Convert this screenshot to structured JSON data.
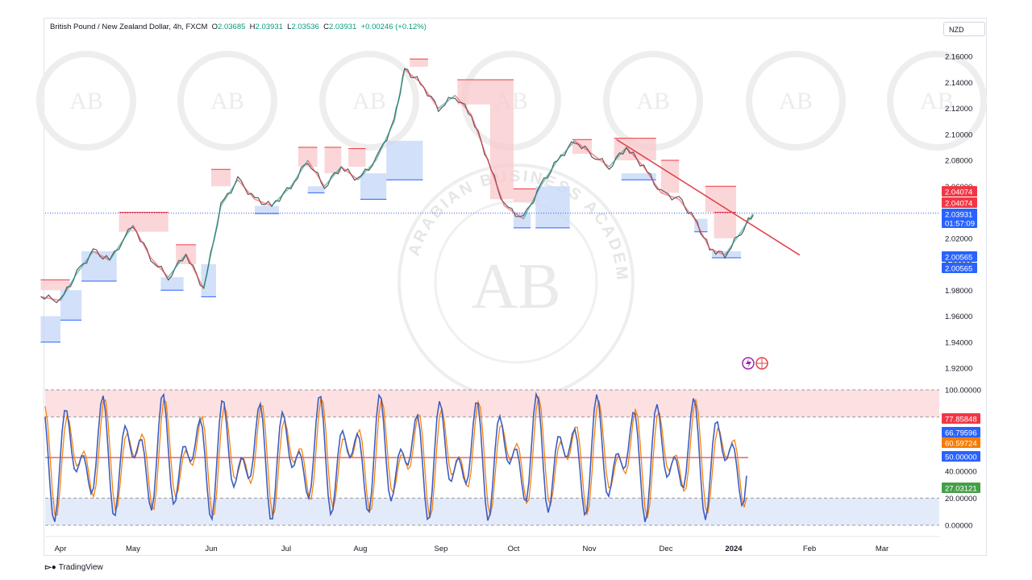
{
  "header": {
    "symbol": "British Pound / New Zealand Dollar, 4h, FXCM",
    "o_label": "O",
    "o": "2.03685",
    "h_label": "H",
    "h": "2.03931",
    "l_label": "L",
    "l": "2.03536",
    "c_label": "C",
    "c": "2.03931",
    "change": "+0.00246 (+0.12%)"
  },
  "currency_button": "NZD",
  "brand": "TradingView",
  "watermark_text": "ARABIAN BUSINESS ACADEMY",
  "watermark_mark": "AB",
  "colors": {
    "up": "#089981",
    "down": "#f23645",
    "line": "#2962ff",
    "supply": "#f8c8cc",
    "demand": "#c7d8f7",
    "trend": "#e0464d"
  },
  "chart_data": [
    {
      "type": "line",
      "title": "",
      "price_axis_ticks": [
        "2.16000",
        "2.14000",
        "2.12000",
        "2.10000",
        "2.08000",
        "2.06000",
        "2.04000",
        "2.02000",
        "2.00000",
        "1.98000",
        "1.96000",
        "1.94000",
        "1.92000"
      ],
      "ylim": [
        1.915,
        2.17
      ],
      "xlabels": [
        "Apr",
        "May",
        "Jun",
        "Jul",
        "Aug",
        "Sep",
        "Oct",
        "Nov",
        "Dec",
        "2024",
        "Feb",
        "Mar"
      ],
      "series": [
        {
          "values": [
            {
              "x": "Mar 24",
              "y": 1.975
            },
            {
              "x": "Apr 1",
              "y": 1.972
            },
            {
              "x": "Apr 8",
              "y": 1.993
            },
            {
              "x": "Apr 15",
              "y": 2.01
            },
            {
              "x": "Apr 22",
              "y": 2.003
            },
            {
              "x": "May 1",
              "y": 2.03
            },
            {
              "x": "May 8",
              "y": 2.005
            },
            {
              "x": "May 15",
              "y": 1.99
            },
            {
              "x": "May 22",
              "y": 2.008
            },
            {
              "x": "May 29",
              "y": 1.981
            },
            {
              "x": "Jun 5",
              "y": 2.045
            },
            {
              "x": "Jun 12",
              "y": 2.065
            },
            {
              "x": "Jun 19",
              "y": 2.05
            },
            {
              "x": "Jun 26",
              "y": 2.045
            },
            {
              "x": "Jul 3",
              "y": 2.06
            },
            {
              "x": "Jul 10",
              "y": 2.08
            },
            {
              "x": "Jul 17",
              "y": 2.06
            },
            {
              "x": "Jul 24",
              "y": 2.075
            },
            {
              "x": "Jul 31",
              "y": 2.065
            },
            {
              "x": "Aug 7",
              "y": 2.08
            },
            {
              "x": "Aug 14",
              "y": 2.11
            },
            {
              "x": "Aug 18",
              "y": 2.15
            },
            {
              "x": "Aug 24",
              "y": 2.14
            },
            {
              "x": "Aug 31",
              "y": 2.12
            },
            {
              "x": "Sep 7",
              "y": 2.13
            },
            {
              "x": "Sep 14",
              "y": 2.115
            },
            {
              "x": "Sep 21",
              "y": 2.08
            },
            {
              "x": "Sep 28",
              "y": 2.045
            },
            {
              "x": "Oct 5",
              "y": 2.035
            },
            {
              "x": "Oct 12",
              "y": 2.06
            },
            {
              "x": "Oct 19",
              "y": 2.08
            },
            {
              "x": "Oct 26",
              "y": 2.095
            },
            {
              "x": "Nov 2",
              "y": 2.085
            },
            {
              "x": "Nov 9",
              "y": 2.075
            },
            {
              "x": "Nov 16",
              "y": 2.09
            },
            {
              "x": "Nov 23",
              "y": 2.075
            },
            {
              "x": "Nov 30",
              "y": 2.055
            },
            {
              "x": "Dec 7",
              "y": 2.05
            },
            {
              "x": "Dec 14",
              "y": 2.035
            },
            {
              "x": "Dec 21",
              "y": 2.012
            },
            {
              "x": "Dec 28",
              "y": 2.007
            },
            {
              "x": "Jan 4",
              "y": 2.025
            },
            {
              "x": "Jan 9",
              "y": 2.039
            }
          ]
        }
      ],
      "supply_zones": [
        {
          "x0": "Mar 24",
          "x1": "Apr 5",
          "y0": 1.98,
          "y1": 1.988
        },
        {
          "x0": "Apr 26",
          "x1": "May 15",
          "y0": 2.025,
          "y1": 2.04
        },
        {
          "x0": "May 18",
          "x1": "May 26",
          "y0": 2.0,
          "y1": 2.015
        },
        {
          "x0": "Jun 1",
          "x1": "Jun 9",
          "y0": 2.06,
          "y1": 2.073
        },
        {
          "x0": "Jul 6",
          "x1": "Jul 14",
          "y0": 2.075,
          "y1": 2.09
        },
        {
          "x0": "Jul 17",
          "x1": "Jul 24",
          "y0": 2.07,
          "y1": 2.09
        },
        {
          "x0": "Jul 27",
          "x1": "Aug 3",
          "y0": 2.075,
          "y1": 2.089
        },
        {
          "x0": "Aug 20",
          "x1": "Aug 27",
          "y0": 2.152,
          "y1": 2.158
        },
        {
          "x0": "Sep 8",
          "x1": "Sep 22",
          "y0": 2.123,
          "y1": 2.142
        },
        {
          "x0": "Sep 22",
          "x1": "Oct 1",
          "y0": 2.05,
          "y1": 2.142
        },
        {
          "x0": "Oct 1",
          "x1": "Oct 11",
          "y0": 2.048,
          "y1": 2.058
        },
        {
          "x0": "Oct 25",
          "x1": "Nov 2",
          "y0": 2.085,
          "y1": 2.096
        },
        {
          "x0": "Nov 11",
          "x1": "Nov 28",
          "y0": 2.08,
          "y1": 2.097
        },
        {
          "x0": "Nov 30",
          "x1": "Dec 7",
          "y0": 2.055,
          "y1": 2.08
        },
        {
          "x0": "Dec 19",
          "x1": "Jan 2",
          "y0": 2.04,
          "y1": 2.06
        },
        {
          "x0": "Dec 23",
          "x1": "Jan 2",
          "y0": 2.02,
          "y1": 2.04
        }
      ],
      "demand_zones": [
        {
          "x0": "Mar 24",
          "x1": "Apr 1",
          "y0": 1.94,
          "y1": 1.96
        },
        {
          "x0": "Apr 1",
          "x1": "Apr 10",
          "y0": 1.957,
          "y1": 1.98
        },
        {
          "x0": "Apr 10",
          "x1": "Apr 25",
          "y0": 1.987,
          "y1": 2.01
        },
        {
          "x0": "May 12",
          "x1": "May 21",
          "y0": 1.98,
          "y1": 1.99
        },
        {
          "x0": "May 28",
          "x1": "Jun 3",
          "y0": 1.975,
          "y1": 2.0
        },
        {
          "x0": "Jun 19",
          "x1": "Jun 29",
          "y0": 2.039,
          "y1": 2.045
        },
        {
          "x0": "Jul 10",
          "x1": "Jul 17",
          "y0": 2.055,
          "y1": 2.06
        },
        {
          "x0": "Aug 1",
          "x1": "Aug 11",
          "y0": 2.05,
          "y1": 2.07
        },
        {
          "x0": "Aug 11",
          "x1": "Aug 25",
          "y0": 2.065,
          "y1": 2.095
        },
        {
          "x0": "Oct 1",
          "x1": "Oct 8",
          "y0": 2.028,
          "y1": 2.04
        },
        {
          "x0": "Oct 10",
          "x1": "Oct 24",
          "y0": 2.028,
          "y1": 2.06
        },
        {
          "x0": "Nov 14",
          "x1": "Nov 28",
          "y0": 2.065,
          "y1": 2.07
        },
        {
          "x0": "Dec 14",
          "x1": "Dec 20",
          "y0": 2.025,
          "y1": 2.035
        },
        {
          "x0": "Dec 22",
          "x1": "Jan 4",
          "y0": 2.005,
          "y1": 2.01
        }
      ],
      "trendline": [
        {
          "x": "Nov 12",
          "y": 2.096
        },
        {
          "x": "Jan 28",
          "y": 2.007
        }
      ],
      "last_price_line": 2.03931,
      "price_tags": [
        {
          "text": "2.04074",
          "value": 2.04074,
          "color": "#f23645"
        },
        {
          "text": "2.04074",
          "value": 2.04074,
          "color": "#f23645"
        },
        {
          "text": "2.03931",
          "value": 2.03931,
          "color": "#2962ff"
        },
        {
          "text": "01:57:09",
          "value": 2.03931,
          "color": "#2962ff"
        },
        {
          "text": "2.00565",
          "value": 2.00565,
          "color": "#2962ff"
        },
        {
          "text": "2.00565",
          "value": 2.00565,
          "color": "#2962ff"
        }
      ]
    },
    {
      "type": "line",
      "title": "",
      "ylim": [
        0,
        100
      ],
      "axis_ticks": [
        "100.00000",
        "40.00000",
        "20.00000",
        "0.00000"
      ],
      "overbought": 80,
      "oversold": 20,
      "midline": 50,
      "tags": [
        {
          "text": "77.85848",
          "value": 77.85848,
          "color": "#f23645"
        },
        {
          "text": "66.79596",
          "value": 66.79596,
          "color": "#2962ff"
        },
        {
          "text": "60.59724",
          "value": 60.59724,
          "color": "#f57c00"
        },
        {
          "text": "50.00000",
          "value": 50,
          "color": "#2962ff"
        },
        {
          "text": "27.03121",
          "value": 27.03121,
          "color": "#43a047"
        }
      ]
    }
  ]
}
